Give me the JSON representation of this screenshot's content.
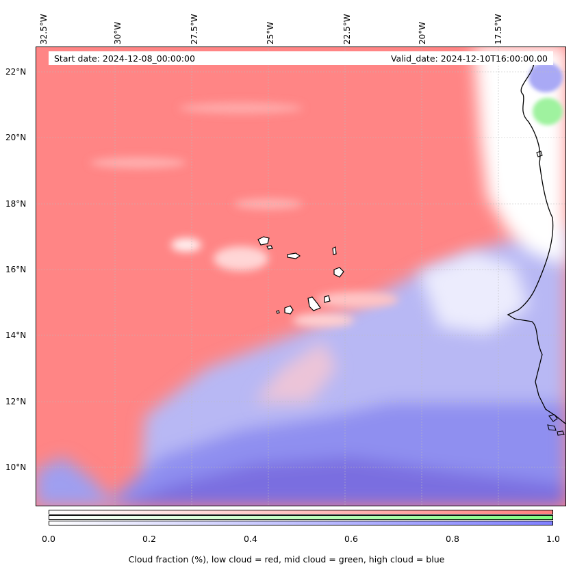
{
  "header": {
    "start_date": "Start date: 2024-12-08_00:00:00",
    "valid_date": "Valid_date: 2024-12-10T16:00:00.00"
  },
  "axes": {
    "longitudes": [
      "32.5°W",
      "30°W",
      "27.5°W",
      "25°W",
      "22.5°W",
      "20°W",
      "17.5°W"
    ],
    "latitudes": [
      "22°N",
      "20°N",
      "18°N",
      "16°N",
      "14°N",
      "12°N",
      "10°N"
    ]
  },
  "colorbar": {
    "ticks": [
      "0.0",
      "0.2",
      "0.4",
      "0.6",
      "0.8",
      "1.0"
    ],
    "label": "Cloud fraction (%), low cloud = red, mid cloud = green, high cloud = blue",
    "colors": {
      "low": "#ff8080",
      "mid": "#80ff80",
      "high": "#8080ff"
    }
  }
}
